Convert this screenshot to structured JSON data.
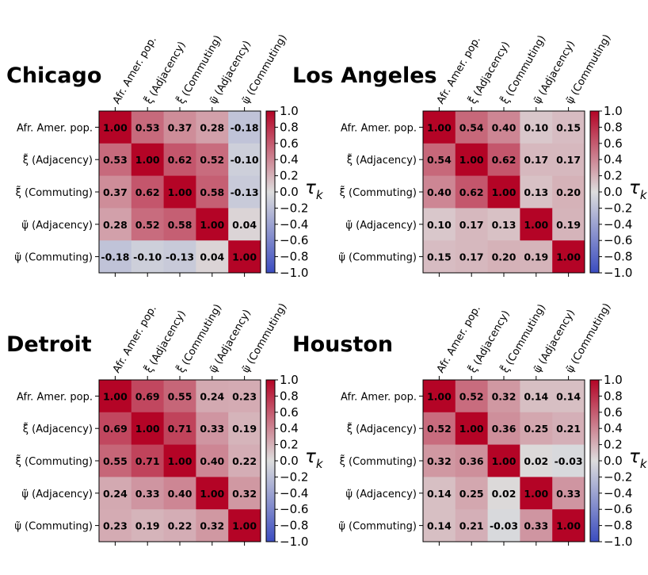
{
  "figure": {
    "row_labels": [
      "Afr. Amer. pop.",
      "ξ̃ (Adjacency)",
      "ξ̃ (Commuting)",
      "ψ̃ (Adjacency)",
      "ψ̃ (Commuting)"
    ],
    "col_labels": [
      "Afr. Amer. pop.",
      "ξ̃ (Adjacency)",
      "ξ̃ (Commuting)",
      "ψ̃ (Adjacency)",
      "ψ̃ (Commuting)"
    ],
    "colorbar": {
      "ticks": [
        "1.0",
        "0.8",
        "0.6",
        "0.4",
        "0.2",
        "0.0",
        "−0.2",
        "−0.4",
        "−0.6",
        "−0.8",
        "−1.0"
      ],
      "label_base": "τ",
      "label_sub": "k",
      "low_color": "#3b4cc0",
      "mid_color": "#dddddd",
      "high_color": "#b40426"
    }
  },
  "chart_data": [
    {
      "type": "heatmap",
      "title": "Chicago",
      "values": [
        [
          1.0,
          0.53,
          0.37,
          0.28,
          -0.18
        ],
        [
          0.53,
          1.0,
          0.62,
          0.52,
          -0.1
        ],
        [
          0.37,
          0.62,
          1.0,
          0.58,
          -0.13
        ],
        [
          0.28,
          0.52,
          0.58,
          1.0,
          0.04
        ],
        [
          -0.18,
          -0.1,
          -0.13,
          0.04,
          1.0
        ]
      ],
      "value_range": [
        -1.0,
        1.0
      ]
    },
    {
      "type": "heatmap",
      "title": "Los Angeles",
      "values": [
        [
          1.0,
          0.54,
          0.4,
          0.1,
          0.15
        ],
        [
          0.54,
          1.0,
          0.62,
          0.17,
          0.17
        ],
        [
          0.4,
          0.62,
          1.0,
          0.13,
          0.2
        ],
        [
          0.1,
          0.17,
          0.13,
          1.0,
          0.19
        ],
        [
          0.15,
          0.17,
          0.2,
          0.19,
          1.0
        ]
      ],
      "value_range": [
        -1.0,
        1.0
      ]
    },
    {
      "type": "heatmap",
      "title": "Detroit",
      "values": [
        [
          1.0,
          0.69,
          0.55,
          0.24,
          0.23
        ],
        [
          0.69,
          1.0,
          0.71,
          0.33,
          0.19
        ],
        [
          0.55,
          0.71,
          1.0,
          0.4,
          0.22
        ],
        [
          0.24,
          0.33,
          0.4,
          1.0,
          0.32
        ],
        [
          0.23,
          0.19,
          0.22,
          0.32,
          1.0
        ]
      ],
      "value_range": [
        -1.0,
        1.0
      ]
    },
    {
      "type": "heatmap",
      "title": "Houston",
      "values": [
        [
          1.0,
          0.52,
          0.32,
          0.14,
          0.14
        ],
        [
          0.52,
          1.0,
          0.36,
          0.25,
          0.21
        ],
        [
          0.32,
          0.36,
          1.0,
          0.02,
          -0.03
        ],
        [
          0.14,
          0.25,
          0.02,
          1.0,
          0.33
        ],
        [
          0.14,
          0.21,
          -0.03,
          0.33,
          1.0
        ]
      ],
      "value_range": [
        -1.0,
        1.0
      ]
    }
  ]
}
